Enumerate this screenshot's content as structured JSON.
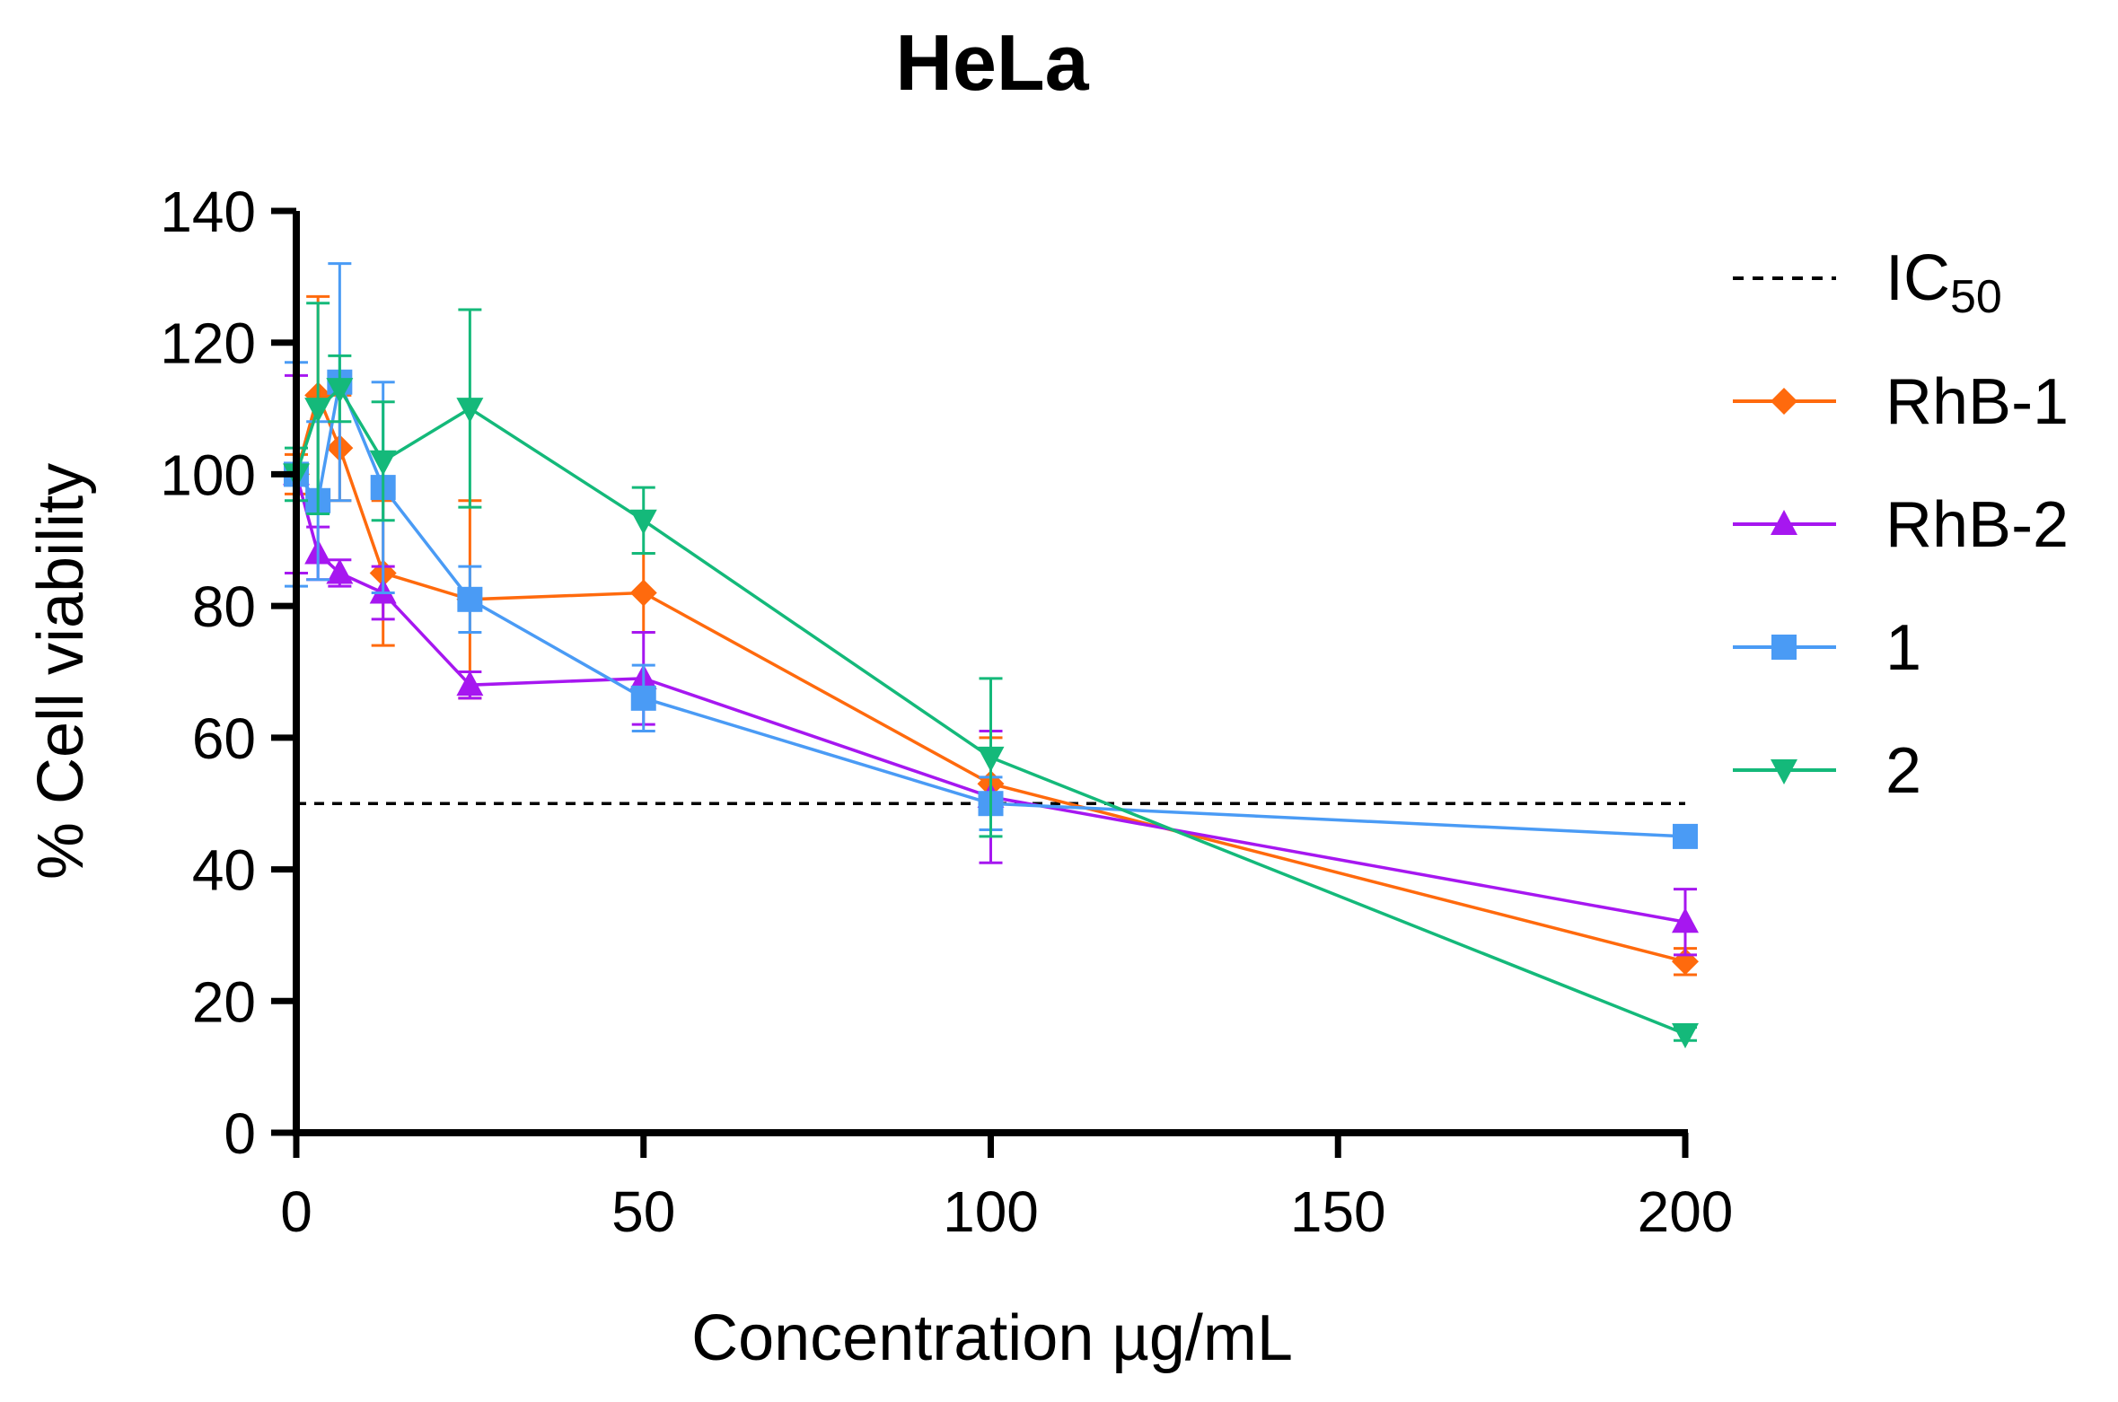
{
  "chart_data": {
    "type": "line",
    "title": "HeLa",
    "xlabel": "Concentration µg/mL",
    "ylabel": "% Cell viability",
    "xlim": [
      0,
      200
    ],
    "ylim": [
      0,
      140
    ],
    "xticks": [
      0,
      50,
      100,
      150,
      200
    ],
    "yticks": [
      0,
      20,
      40,
      60,
      80,
      100,
      120,
      140
    ],
    "reference_line": {
      "name": "IC",
      "subscript": "50",
      "y": 50,
      "style": "dashed",
      "color": "#000000"
    },
    "x": [
      0,
      3.125,
      6.25,
      12.5,
      25,
      50,
      100,
      200
    ],
    "series": [
      {
        "name": "RhB-1",
        "marker": "diamond",
        "color": "#FF6A0D",
        "values": [
          100,
          112,
          104,
          85,
          81,
          82,
          53,
          26
        ],
        "errors": [
          3,
          15,
          8,
          11,
          15,
          6,
          7,
          2
        ]
      },
      {
        "name": "RhB-2",
        "marker": "triangle-up",
        "color": "#A617F0",
        "values": [
          100,
          88,
          85,
          82,
          68,
          69,
          51,
          32
        ],
        "errors": [
          15,
          4,
          2,
          4,
          2,
          7,
          10,
          5
        ]
      },
      {
        "name": "1",
        "marker": "square",
        "color": "#4A9BF5",
        "values": [
          100,
          96,
          114,
          98,
          81,
          66,
          50,
          45
        ],
        "errors": [
          17,
          12,
          18,
          16,
          5,
          5,
          4,
          1
        ]
      },
      {
        "name": "2",
        "marker": "triangle-down",
        "color": "#14B97A",
        "values": [
          100,
          110,
          113,
          102,
          110,
          93,
          57,
          15
        ],
        "errors": [
          4,
          16,
          5,
          9,
          15,
          5,
          12,
          1
        ]
      }
    ]
  }
}
